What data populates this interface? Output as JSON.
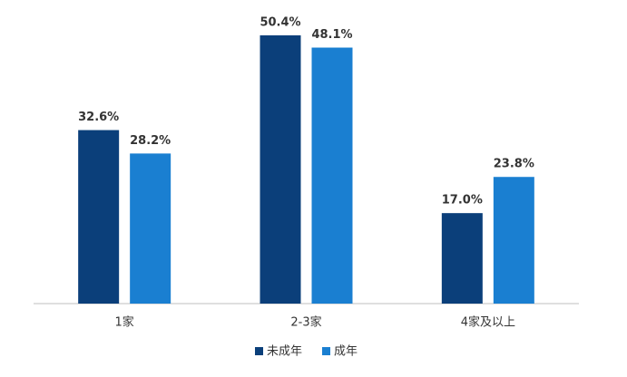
{
  "chart_data": {
    "type": "bar",
    "categories": [
      "1家",
      "2-3家",
      "4家及以上"
    ],
    "series": [
      {
        "name": "未成年",
        "color": "#0b3f7a",
        "values": [
          32.6,
          50.4,
          17.0
        ],
        "value_labels": [
          "32.6%",
          "50.4%",
          "17.0%"
        ]
      },
      {
        "name": "成年",
        "color": "#1a7fd1",
        "values": [
          28.2,
          48.1,
          23.8
        ],
        "value_labels": [
          "28.2%",
          "48.1%",
          "23.8%"
        ]
      }
    ],
    "ylim": [
      0,
      55
    ],
    "legend": "bottom"
  }
}
